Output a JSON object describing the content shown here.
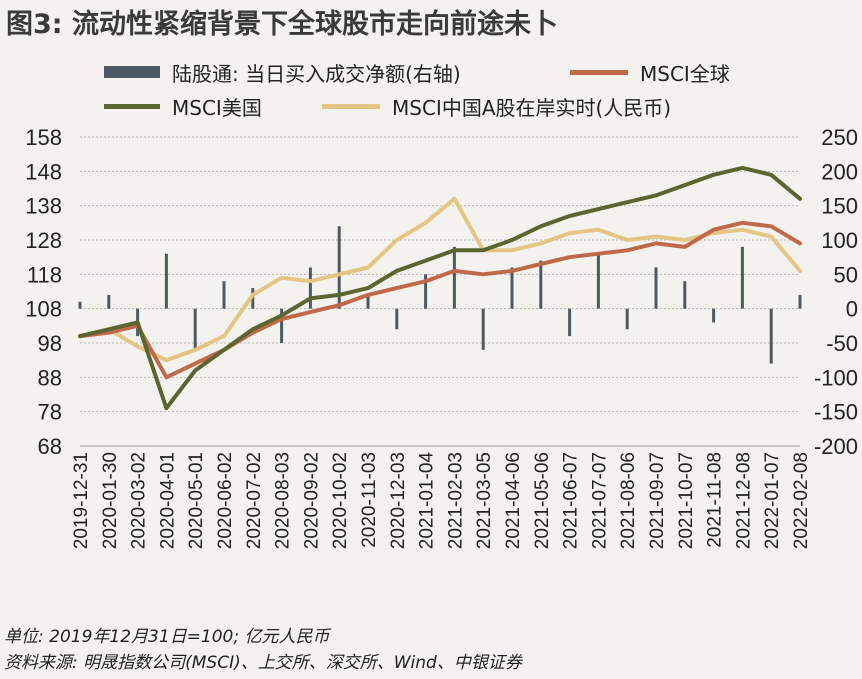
{
  "title": "图3: 流动性紧缩背景下全球股市走向前途未卜",
  "legend": [
    {
      "label": "陆股通: 当日买入成交净额(右轴)",
      "color": "#4d5a62",
      "kind": "bar"
    },
    {
      "label": "MSCI全球",
      "color": "#c0694a",
      "kind": "line"
    },
    {
      "label": "MSCI美国",
      "color": "#5a6530",
      "kind": "line"
    },
    {
      "label": "MSCI中国A股在岸实时(人民币)",
      "color": "#e4c584",
      "kind": "line"
    }
  ],
  "footnotes": {
    "unit": "单位: 2019年12月31日=100; 亿元人民币",
    "source": "资料来源: 明晟指数公司(MSCI)、上交所、深交所、Wind、中银证券"
  },
  "chart_data": {
    "type": "line",
    "x": [
      "2019-12-31",
      "2020-01-30",
      "2020-03-02",
      "2020-04-01",
      "2020-05-01",
      "2020-06-02",
      "2020-07-02",
      "2020-08-03",
      "2020-09-02",
      "2020-10-02",
      "2020-11-03",
      "2020-12-03",
      "2021-01-04",
      "2021-02-03",
      "2021-03-05",
      "2021-04-06",
      "2021-05-06",
      "2021-06-07",
      "2021-07-07",
      "2021-08-06",
      "2021-09-07",
      "2021-10-07",
      "2021-11-08",
      "2021-12-08",
      "2022-01-07",
      "2022-02-08"
    ],
    "xlabels": [
      "2019-12-31",
      "2020-01-30",
      "2020-03-02",
      "2020-04-01",
      "2020-05-01",
      "2020-06-02",
      "2020-07-02",
      "2020-08-03",
      "2020-09-02",
      "2020-10-02",
      "2020-11-03",
      "2020-12-03",
      "2021-01-04",
      "2021-02-03",
      "2021-03-05",
      "2021-04-06",
      "2021-05-06",
      "2021-06-07",
      "2021-07-07",
      "2021-08-06",
      "2021-09-07",
      "2021-10-07",
      "2021-11-08",
      "2021-12-08",
      "2022-01-07",
      "2022-02-08"
    ],
    "yleft": {
      "ticks": [
        68,
        78,
        88,
        98,
        108,
        118,
        128,
        138,
        148,
        158
      ],
      "ylim": [
        68,
        158
      ]
    },
    "yright": {
      "ticks": [
        -200,
        -150,
        -100,
        -50,
        0,
        50,
        100,
        150,
        200,
        250
      ],
      "ylim": [
        -200,
        250
      ]
    },
    "grid": true,
    "series": [
      {
        "name": "MSCI全球",
        "axis": "left",
        "values": [
          100,
          101,
          103,
          88,
          92,
          96,
          101,
          105,
          107,
          109,
          112,
          114,
          116,
          119,
          118,
          119,
          121,
          123,
          124,
          125,
          127,
          126,
          131,
          133,
          132,
          127
        ]
      },
      {
        "name": "MSCI美国",
        "axis": "left",
        "values": [
          100,
          102,
          104,
          79,
          90,
          96,
          102,
          106,
          111,
          112,
          114,
          119,
          122,
          125,
          125,
          128,
          132,
          135,
          137,
          139,
          141,
          144,
          147,
          149,
          147,
          140
        ]
      },
      {
        "name": "MSCI中国A股在岸实时(人民币)",
        "axis": "left",
        "values": [
          100,
          102,
          97,
          93,
          96,
          100,
          112,
          117,
          116,
          118,
          120,
          128,
          133,
          140,
          125,
          125,
          127,
          130,
          131,
          128,
          129,
          128,
          130,
          131,
          129,
          119
        ]
      },
      {
        "name": "陆股通: 当日买入成交净额(右轴)",
        "axis": "right",
        "kind": "bar",
        "values": [
          10,
          20,
          -40,
          80,
          -60,
          40,
          30,
          -50,
          60,
          120,
          20,
          -30,
          50,
          90,
          -60,
          60,
          70,
          -40,
          80,
          -30,
          60,
          40,
          -20,
          90,
          -80,
          20
        ]
      }
    ]
  }
}
